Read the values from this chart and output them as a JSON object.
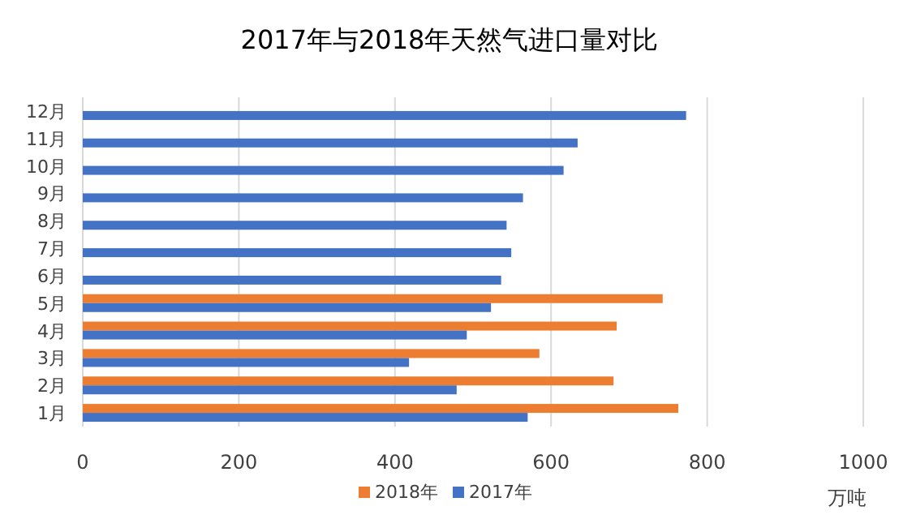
{
  "chart_data": {
    "type": "bar",
    "orientation": "horizontal",
    "title": "2017年与2018年天然气进口量对比",
    "xlabel": "万吨",
    "categories": [
      "12月",
      "11月",
      "10月",
      "9月",
      "8月",
      "7月",
      "6月",
      "5月",
      "4月",
      "3月",
      "2月",
      "1月"
    ],
    "series": [
      {
        "name": "2018年",
        "color": "#ed7d31",
        "values": [
          null,
          null,
          null,
          null,
          null,
          null,
          null,
          743,
          684,
          585,
          680,
          763
        ]
      },
      {
        "name": "2017年",
        "color": "#4472c4",
        "values": [
          773,
          634,
          616,
          564,
          543,
          549,
          536,
          523,
          492,
          418,
          479,
          570
        ]
      }
    ],
    "xlim": [
      0,
      1000
    ],
    "xticks": [
      0,
      200,
      400,
      600,
      800,
      1000
    ],
    "grid": "x",
    "legend": "bottom"
  }
}
